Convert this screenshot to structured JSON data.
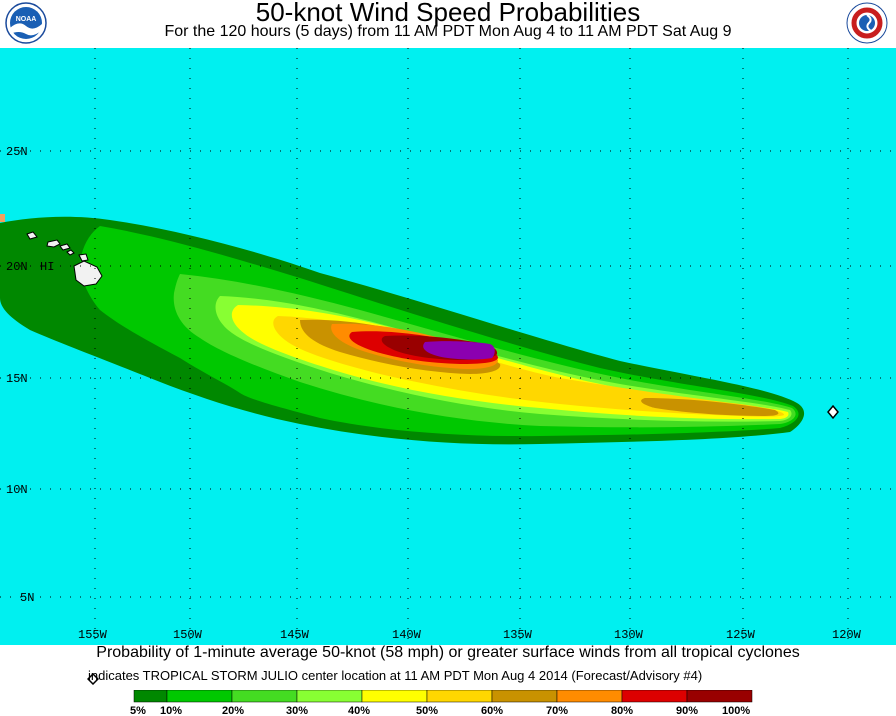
{
  "header": {
    "title": "50-knot Wind Speed Probabilities",
    "subtitle": "For the 120 hours (5 days) from 11 AM PDT Mon Aug 4 to 11 AM PDT Sat Aug 9"
  },
  "logos": {
    "left": "NOAA",
    "right": "NATIONAL WEATHER SERVICE"
  },
  "map": {
    "ocean_color": "#00f0f0",
    "land_color": "#f2f2f2",
    "longitude_labels": [
      "155W",
      "150W",
      "145W",
      "140W",
      "135W",
      "130W",
      "125W",
      "120W"
    ],
    "latitude_labels": [
      "25N",
      "20N",
      "15N",
      "10N",
      "5N"
    ],
    "place_label": "HI",
    "storm_center": {
      "lon": -120.5,
      "lat": 13.4
    }
  },
  "footer": {
    "caption": "Probability of 1-minute average 50-knot (58 mph) or greater surface winds from all tropical cyclones",
    "note": "indicates TROPICAL STORM JULIO center location at 11 AM PDT Mon Aug 4 2014 (Forecast/Advisory #4)"
  },
  "legend": {
    "labels": [
      "5%",
      "10%",
      "20%",
      "30%",
      "40%",
      "50%",
      "60%",
      "70%",
      "80%",
      "90%",
      "100%"
    ],
    "colors": [
      "#008800",
      "#00c800",
      "#44dc22",
      "#88ff33",
      "#ffff00",
      "#ffd700",
      "#c99200",
      "#ff8c00",
      "#dd0000",
      "#990000",
      "#8b00b0"
    ]
  }
}
